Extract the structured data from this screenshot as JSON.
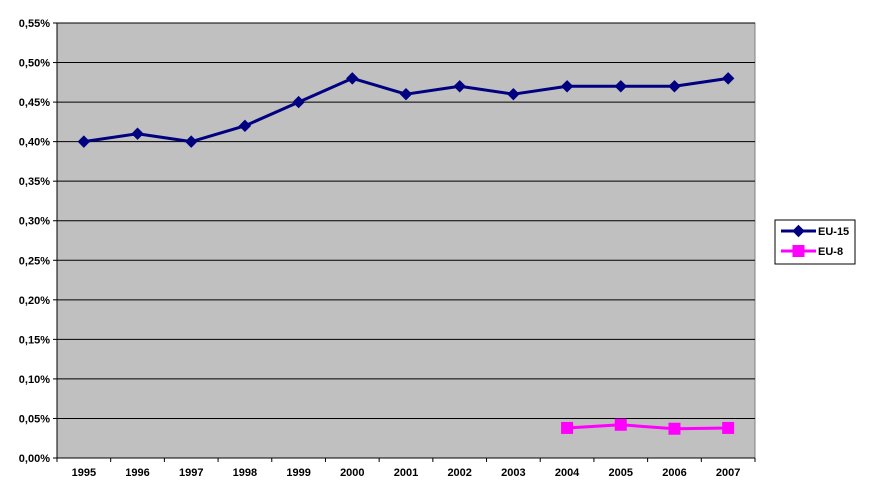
{
  "chart_data": {
    "type": "line",
    "title": "",
    "xlabel": "",
    "ylabel": "",
    "x": [
      "1995",
      "1996",
      "1997",
      "1998",
      "1999",
      "2000",
      "2001",
      "2002",
      "2003",
      "2004",
      "2005",
      "2006",
      "2007"
    ],
    "y_ticks": [
      "0,00%",
      "0,05%",
      "0,10%",
      "0,15%",
      "0,20%",
      "0,25%",
      "0,30%",
      "0,35%",
      "0,40%",
      "0,45%",
      "0,50%",
      "0,55%"
    ],
    "ylim": [
      0,
      0.55
    ],
    "y_unit": "%",
    "grid": "horizontal",
    "plot_background": "#c0c0c0",
    "legend_position": "right",
    "series": [
      {
        "name": "EU-15",
        "color": "#000080",
        "marker": "diamond",
        "values": [
          0.4,
          0.41,
          0.4,
          0.42,
          0.45,
          0.48,
          0.46,
          0.47,
          0.46,
          0.47,
          0.47,
          0.47,
          0.48
        ]
      },
      {
        "name": "EU-8",
        "color": "#ff00ff",
        "marker": "square",
        "values": [
          null,
          null,
          null,
          null,
          null,
          null,
          null,
          null,
          null,
          0.038,
          0.042,
          0.037,
          0.038
        ]
      }
    ]
  }
}
